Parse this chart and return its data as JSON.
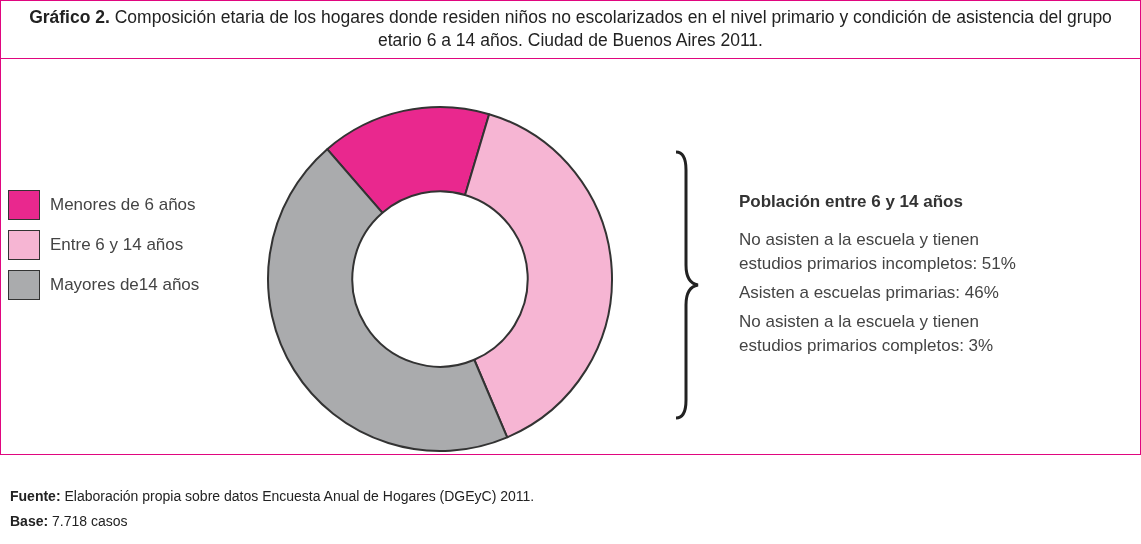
{
  "chart_data": {
    "type": "donut",
    "title": "Gráfico 2. Composición etaria de los hogares donde residen niños no escolarizados en el nivel primario y condición de asistencia del grupo etario 6 a 14 años. Ciudad de Buenos Aires 2011.",
    "categories": [
      "Menores de 6 años",
      "Entre 6 y 14 años",
      "Mayores de14 años"
    ],
    "values": [
      16,
      39,
      45
    ],
    "colors": [
      "#e9288e",
      "#f6b5d3",
      "#aaabad"
    ],
    "legend": "left",
    "annotations": [
      "Población entre 6 y 14 años",
      "No asisten a la escuela y tienen estudios primarios incompletos: 51%",
      "Asisten a escuelas primarias: 46%",
      "No asisten a la escuela y tienen estudios primarios completos: 3%",
      "Fuente: Elaboración propia sobre datos Encuesta Anual de Hogares (DGEyC) 2011.",
      "Base: 7.718 casos"
    ]
  }
}
